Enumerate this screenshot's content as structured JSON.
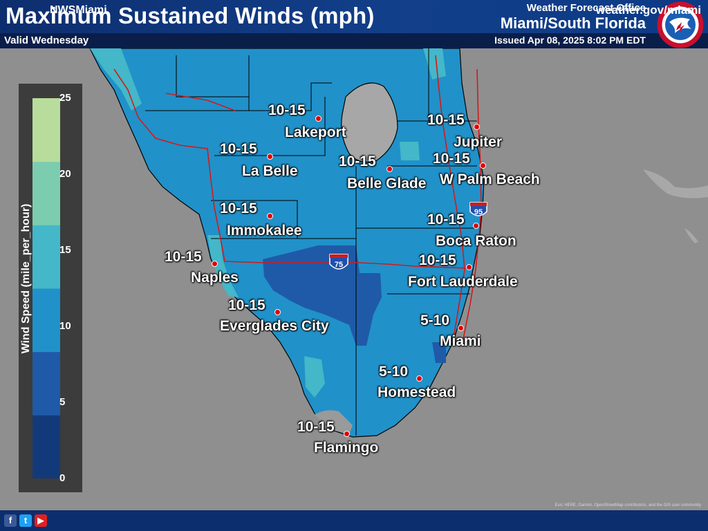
{
  "header": {
    "title": "Maximum Sustained Winds (mph)",
    "valid": "Valid Wednesday",
    "office_label": "Weather Forecast Office",
    "office_name": "Miami/South Florida",
    "issued": "Issued Apr 08, 2025 8:02 PM EDT",
    "logo_icon": "nws-logo-icon"
  },
  "legend": {
    "title": "Wind Speed (mile_per_hour)",
    "ticks": [
      "25",
      "20",
      "15",
      "10",
      "5",
      "0"
    ],
    "colors": [
      "#123a7a",
      "#1f5aa8",
      "#2191c9",
      "#44b7c8",
      "#7ccdb0",
      "#b7dc9b"
    ]
  },
  "map": {
    "land_colors": {
      "primary": "#2191c9",
      "low": "#1f5aa8",
      "high": "#44b7c8",
      "lake": "#a7a7a7",
      "ocean": "#8f8f8f"
    },
    "highways": [
      {
        "name": "I-75",
        "label": "75"
      },
      {
        "name": "I-95",
        "label": "95"
      }
    ]
  },
  "cities": [
    {
      "name": "Lakeport",
      "wind": "10-15"
    },
    {
      "name": "La Belle",
      "wind": "10-15"
    },
    {
      "name": "Belle Glade",
      "wind": "10-15"
    },
    {
      "name": "Jupiter",
      "wind": "10-15"
    },
    {
      "name": "W Palm Beach",
      "wind": "10-15"
    },
    {
      "name": "Immokalee",
      "wind": "10-15"
    },
    {
      "name": "Boca Raton",
      "wind": "10-15"
    },
    {
      "name": "Naples",
      "wind": "10-15"
    },
    {
      "name": "Fort Lauderdale",
      "wind": "10-15"
    },
    {
      "name": "Everglades City",
      "wind": "10-15"
    },
    {
      "name": "Miami",
      "wind": "5-10"
    },
    {
      "name": "Homestead",
      "wind": "5-10"
    },
    {
      "name": "Flamingo",
      "wind": "10-15"
    }
  ],
  "attribution": "Esri, HERE, Garmin, OpenStreetMap contributors, and the GIS user community",
  "footer": {
    "social": [
      {
        "name": "facebook-icon",
        "glyph": "f",
        "color": "#3b5998"
      },
      {
        "name": "twitter-icon",
        "glyph": "t",
        "color": "#1da1f2"
      },
      {
        "name": "youtube-icon",
        "glyph": "▶",
        "color": "#e02020"
      }
    ],
    "handle": "NWSMiami",
    "website": "weather.gov/miami"
  }
}
